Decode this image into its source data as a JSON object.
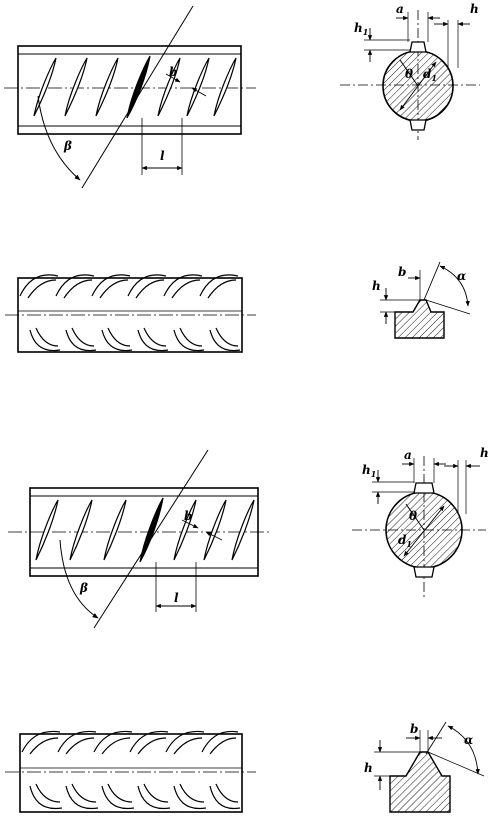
{
  "figures": [
    {
      "id": "fig-a",
      "side_view_labels": {
        "rib_angle": "β",
        "rib_width": "b",
        "rib_spacing": "l"
      },
      "section_labels": {
        "rib_spacing_a": "a",
        "rib_height_h": "h",
        "rib_height_h1": "h",
        "h1_subscript": "1",
        "angle": "θ",
        "diameter": "d",
        "diameter_subscript": "1"
      }
    },
    {
      "id": "fig-b",
      "rib_labels": {
        "width": "b",
        "height": "h",
        "angle": "α"
      }
    },
    {
      "id": "fig-c",
      "side_view_labels": {
        "rib_angle": "β",
        "rib_width": "b",
        "rib_spacing": "l"
      },
      "section_labels": {
        "rib_spacing_a": "a",
        "rib_height_h": "h",
        "rib_height_h1": "h",
        "h1_subscript": "1",
        "angle": "θ",
        "diameter": "d",
        "diameter_subscript": "1"
      }
    },
    {
      "id": "fig-d",
      "rib_labels": {
        "width": "b",
        "height": "h",
        "angle": "α"
      }
    }
  ],
  "colors": {
    "ink": "#000000",
    "paper": "#ffffff"
  }
}
